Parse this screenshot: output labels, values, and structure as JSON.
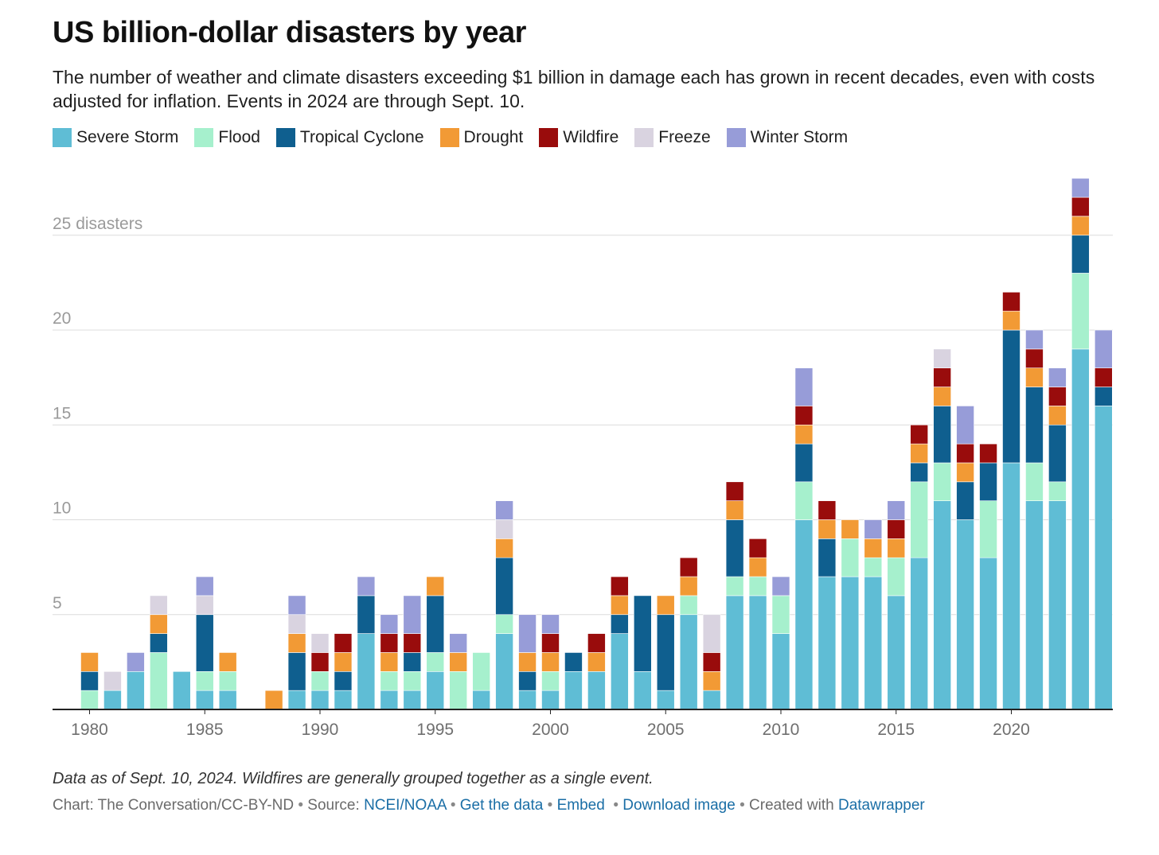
{
  "chart_data": {
    "type": "bar",
    "stacked": true,
    "title": "US billion-dollar disasters by year",
    "subtitle": "The number of weather and climate disasters exceeding $1 billion in damage each has grown in recent decades, even with costs adjusted for inflation. Events in 2024 are through Sept. 10.",
    "categories": [
      1980,
      1981,
      1982,
      1983,
      1984,
      1985,
      1986,
      1987,
      1988,
      1989,
      1990,
      1991,
      1992,
      1993,
      1994,
      1995,
      1996,
      1997,
      1998,
      1999,
      2000,
      2001,
      2002,
      2003,
      2004,
      2005,
      2006,
      2007,
      2008,
      2009,
      2010,
      2011,
      2012,
      2013,
      2014,
      2015,
      2016,
      2017,
      2018,
      2019,
      2020,
      2021,
      2022,
      2023,
      2024
    ],
    "x_ticks": [
      "1980",
      "1985",
      "1990",
      "1995",
      "2000",
      "2005",
      "2010",
      "2015",
      "2020"
    ],
    "y_ticks": [
      {
        "value": 5,
        "label": "5"
      },
      {
        "value": 10,
        "label": "10"
      },
      {
        "value": 15,
        "label": "15"
      },
      {
        "value": 20,
        "label": "20"
      },
      {
        "value": 25,
        "label": "25 disasters"
      }
    ],
    "ylim": [
      0,
      28
    ],
    "grid": true,
    "legend_position": "top",
    "series": [
      {
        "name": "Severe Storm",
        "color": "#5fbdd5",
        "values": [
          0,
          1,
          2,
          0,
          2,
          1,
          1,
          0,
          0,
          1,
          1,
          1,
          4,
          1,
          1,
          2,
          0,
          1,
          4,
          1,
          1,
          2,
          2,
          4,
          2,
          1,
          5,
          1,
          6,
          6,
          4,
          10,
          7,
          7,
          7,
          6,
          8,
          11,
          10,
          8,
          13,
          11,
          11,
          19,
          16
        ]
      },
      {
        "name": "Flood",
        "color": "#a6f0cd",
        "values": [
          1,
          0,
          0,
          3,
          0,
          1,
          1,
          0,
          0,
          0,
          1,
          0,
          0,
          1,
          1,
          1,
          2,
          2,
          1,
          0,
          1,
          0,
          0,
          0,
          0,
          0,
          1,
          0,
          1,
          1,
          2,
          2,
          0,
          2,
          1,
          2,
          4,
          2,
          0,
          3,
          0,
          2,
          1,
          4,
          0
        ]
      },
      {
        "name": "Tropical Cyclone",
        "color": "#0f5f8f",
        "values": [
          1,
          0,
          0,
          1,
          0,
          3,
          0,
          0,
          0,
          2,
          0,
          1,
          2,
          0,
          1,
          3,
          0,
          0,
          3,
          1,
          0,
          1,
          0,
          1,
          4,
          4,
          0,
          0,
          3,
          0,
          0,
          2,
          2,
          0,
          0,
          0,
          1,
          3,
          2,
          2,
          7,
          4,
          3,
          2,
          1
        ]
      },
      {
        "name": "Drought",
        "color": "#f29a35",
        "values": [
          1,
          0,
          0,
          1,
          0,
          0,
          1,
          0,
          1,
          1,
          0,
          1,
          0,
          1,
          0,
          1,
          1,
          0,
          1,
          1,
          1,
          0,
          1,
          1,
          0,
          1,
          1,
          1,
          1,
          1,
          0,
          1,
          1,
          1,
          1,
          1,
          1,
          1,
          1,
          0,
          1,
          1,
          1,
          1,
          0
        ]
      },
      {
        "name": "Wildfire",
        "color": "#990c0c",
        "values": [
          0,
          0,
          0,
          0,
          0,
          0,
          0,
          0,
          0,
          0,
          1,
          1,
          0,
          1,
          1,
          0,
          0,
          0,
          0,
          0,
          1,
          0,
          1,
          1,
          0,
          0,
          1,
          1,
          1,
          1,
          0,
          1,
          1,
          0,
          0,
          1,
          1,
          1,
          1,
          1,
          1,
          1,
          1,
          1,
          1
        ]
      },
      {
        "name": "Freeze",
        "color": "#d9d3e0",
        "values": [
          0,
          1,
          0,
          1,
          0,
          1,
          0,
          0,
          0,
          1,
          1,
          0,
          0,
          0,
          0,
          0,
          0,
          0,
          1,
          0,
          0,
          0,
          0,
          0,
          0,
          0,
          0,
          2,
          0,
          0,
          0,
          0,
          0,
          0,
          0,
          0,
          0,
          1,
          0,
          0,
          0,
          0,
          0,
          0,
          0
        ]
      },
      {
        "name": "Winter Storm",
        "color": "#979cd8",
        "values": [
          0,
          0,
          1,
          0,
          0,
          1,
          0,
          0,
          0,
          1,
          0,
          0,
          1,
          1,
          2,
          0,
          1,
          0,
          1,
          2,
          1,
          0,
          0,
          0,
          0,
          0,
          0,
          0,
          0,
          0,
          1,
          2,
          0,
          0,
          1,
          1,
          0,
          0,
          2,
          0,
          0,
          1,
          1,
          1,
          2
        ]
      }
    ]
  },
  "footer": {
    "note": "Data as of Sept. 10, 2024. Wildfires are generally grouped together as a single event.",
    "chart_credit": "Chart: The Conversation/CC-BY-ND",
    "source_label": "Source:",
    "source_link": "NCEI/NOAA",
    "get_data": "Get the data",
    "embed": "Embed",
    "download": "Download image",
    "created_with": "Created with",
    "datawrapper": "Datawrapper"
  }
}
